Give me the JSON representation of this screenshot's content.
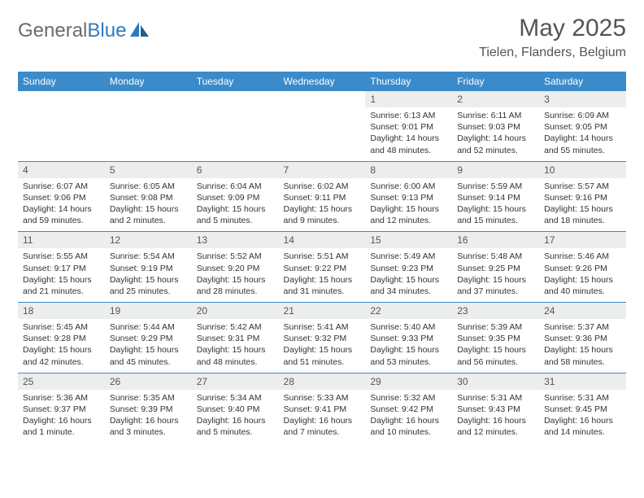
{
  "brand": {
    "part1": "General",
    "part2": "Blue"
  },
  "title": "May 2025",
  "location": "Tielen, Flanders, Belgium",
  "colors": {
    "header_bg": "#3b8bca",
    "header_text": "#ffffff",
    "daynum_bg": "#eceded",
    "border": "#3b8bca",
    "text": "#333333",
    "title_text": "#555555"
  },
  "day_headers": [
    "Sunday",
    "Monday",
    "Tuesday",
    "Wednesday",
    "Thursday",
    "Friday",
    "Saturday"
  ],
  "weeks": [
    {
      "nums": [
        "",
        "",
        "",
        "",
        "1",
        "2",
        "3"
      ],
      "cells": [
        "",
        "",
        "",
        "",
        "Sunrise: 6:13 AM\nSunset: 9:01 PM\nDaylight: 14 hours and 48 minutes.",
        "Sunrise: 6:11 AM\nSunset: 9:03 PM\nDaylight: 14 hours and 52 minutes.",
        "Sunrise: 6:09 AM\nSunset: 9:05 PM\nDaylight: 14 hours and 55 minutes."
      ]
    },
    {
      "nums": [
        "4",
        "5",
        "6",
        "7",
        "8",
        "9",
        "10"
      ],
      "cells": [
        "Sunrise: 6:07 AM\nSunset: 9:06 PM\nDaylight: 14 hours and 59 minutes.",
        "Sunrise: 6:05 AM\nSunset: 9:08 PM\nDaylight: 15 hours and 2 minutes.",
        "Sunrise: 6:04 AM\nSunset: 9:09 PM\nDaylight: 15 hours and 5 minutes.",
        "Sunrise: 6:02 AM\nSunset: 9:11 PM\nDaylight: 15 hours and 9 minutes.",
        "Sunrise: 6:00 AM\nSunset: 9:13 PM\nDaylight: 15 hours and 12 minutes.",
        "Sunrise: 5:59 AM\nSunset: 9:14 PM\nDaylight: 15 hours and 15 minutes.",
        "Sunrise: 5:57 AM\nSunset: 9:16 PM\nDaylight: 15 hours and 18 minutes."
      ]
    },
    {
      "nums": [
        "11",
        "12",
        "13",
        "14",
        "15",
        "16",
        "17"
      ],
      "cells": [
        "Sunrise: 5:55 AM\nSunset: 9:17 PM\nDaylight: 15 hours and 21 minutes.",
        "Sunrise: 5:54 AM\nSunset: 9:19 PM\nDaylight: 15 hours and 25 minutes.",
        "Sunrise: 5:52 AM\nSunset: 9:20 PM\nDaylight: 15 hours and 28 minutes.",
        "Sunrise: 5:51 AM\nSunset: 9:22 PM\nDaylight: 15 hours and 31 minutes.",
        "Sunrise: 5:49 AM\nSunset: 9:23 PM\nDaylight: 15 hours and 34 minutes.",
        "Sunrise: 5:48 AM\nSunset: 9:25 PM\nDaylight: 15 hours and 37 minutes.",
        "Sunrise: 5:46 AM\nSunset: 9:26 PM\nDaylight: 15 hours and 40 minutes."
      ]
    },
    {
      "nums": [
        "18",
        "19",
        "20",
        "21",
        "22",
        "23",
        "24"
      ],
      "cells": [
        "Sunrise: 5:45 AM\nSunset: 9:28 PM\nDaylight: 15 hours and 42 minutes.",
        "Sunrise: 5:44 AM\nSunset: 9:29 PM\nDaylight: 15 hours and 45 minutes.",
        "Sunrise: 5:42 AM\nSunset: 9:31 PM\nDaylight: 15 hours and 48 minutes.",
        "Sunrise: 5:41 AM\nSunset: 9:32 PM\nDaylight: 15 hours and 51 minutes.",
        "Sunrise: 5:40 AM\nSunset: 9:33 PM\nDaylight: 15 hours and 53 minutes.",
        "Sunrise: 5:39 AM\nSunset: 9:35 PM\nDaylight: 15 hours and 56 minutes.",
        "Sunrise: 5:37 AM\nSunset: 9:36 PM\nDaylight: 15 hours and 58 minutes."
      ]
    },
    {
      "nums": [
        "25",
        "26",
        "27",
        "28",
        "29",
        "30",
        "31"
      ],
      "cells": [
        "Sunrise: 5:36 AM\nSunset: 9:37 PM\nDaylight: 16 hours and 1 minute.",
        "Sunrise: 5:35 AM\nSunset: 9:39 PM\nDaylight: 16 hours and 3 minutes.",
        "Sunrise: 5:34 AM\nSunset: 9:40 PM\nDaylight: 16 hours and 5 minutes.",
        "Sunrise: 5:33 AM\nSunset: 9:41 PM\nDaylight: 16 hours and 7 minutes.",
        "Sunrise: 5:32 AM\nSunset: 9:42 PM\nDaylight: 16 hours and 10 minutes.",
        "Sunrise: 5:31 AM\nSunset: 9:43 PM\nDaylight: 16 hours and 12 minutes.",
        "Sunrise: 5:31 AM\nSunset: 9:45 PM\nDaylight: 16 hours and 14 minutes."
      ]
    }
  ]
}
